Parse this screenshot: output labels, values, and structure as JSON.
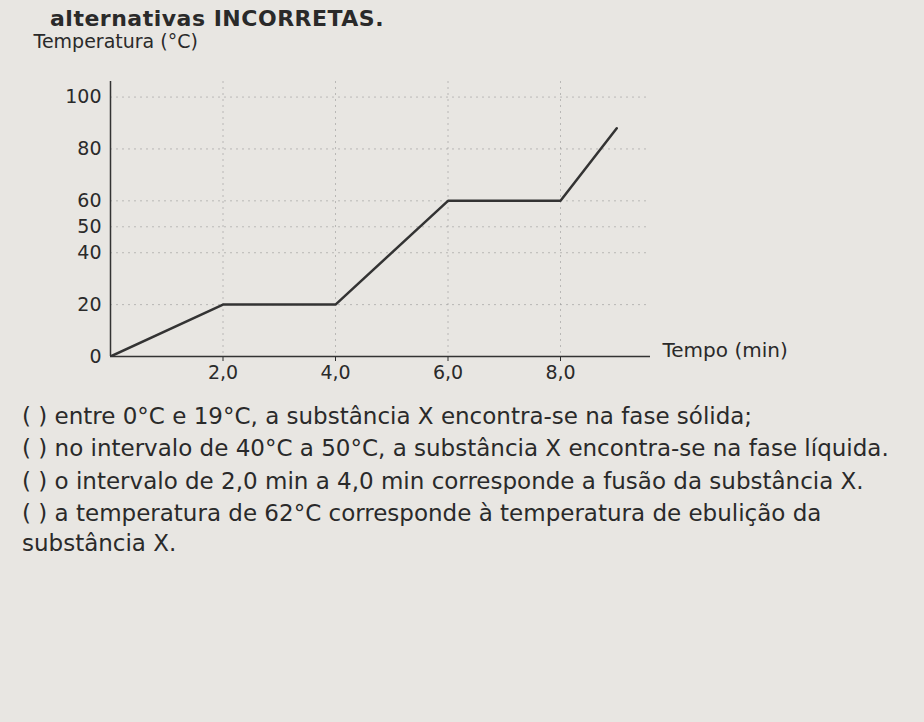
{
  "page": {
    "heading": "alternativas INCORRETAS.",
    "items": [
      "( ) entre 0°C e 19°C, a substância X encontra-se na fase sólida;",
      "( ) no intervalo de 40°C a 50°C, a substância X encontra-se na fase líquida.",
      "( ) o intervalo de 2,0 min a 4,0 min corresponde a fusão da substância X.",
      "( ) a temperatura de 62°C corresponde à temperatura de ebulição da substância X."
    ]
  },
  "chart_data": {
    "type": "line",
    "x_label": "Tempo (min)",
    "y_label": "Temperatura (°C)",
    "x": [
      0,
      2.0,
      4.0,
      6.0,
      8.0,
      9.0
    ],
    "values": [
      0,
      20,
      20,
      60,
      60,
      88
    ],
    "color": "#333333",
    "xlim": [
      0,
      9.6
    ],
    "ylim": [
      0,
      106
    ],
    "xticks": [
      {
        "value": 2,
        "label": "2,0"
      },
      {
        "value": 4,
        "label": "4,0"
      },
      {
        "value": 6,
        "label": "6,0"
      },
      {
        "value": 8,
        "label": "8,0"
      }
    ],
    "yticks": [
      0,
      20,
      40,
      50,
      60,
      80,
      100
    ],
    "grid": true
  }
}
